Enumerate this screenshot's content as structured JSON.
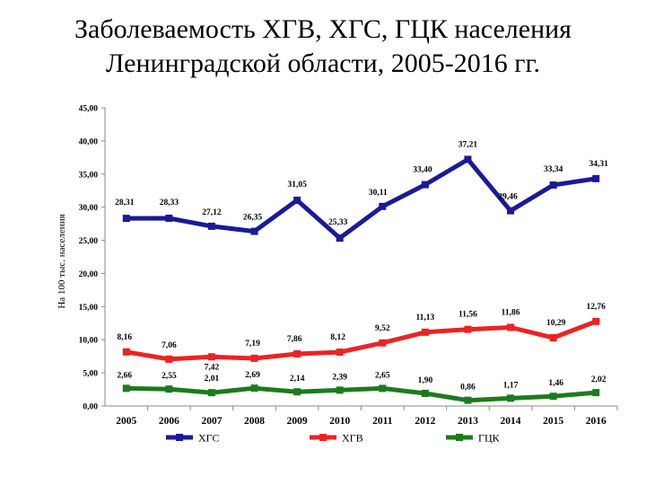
{
  "title_line1": "Заболеваемость ХГВ, ХГС, ГЦК населения",
  "title_line2": "Ленинградской области, 2005-2016 гг.",
  "chart_data": {
    "type": "line",
    "ylabel": "На 100 тыс. населения",
    "ylim": [
      0,
      45
    ],
    "yticks": [
      "0,00",
      "5,00",
      "10,00",
      "15,00",
      "20,00",
      "25,00",
      "30,00",
      "35,00",
      "40,00",
      "45,00"
    ],
    "categories": [
      "2005",
      "2006",
      "2007",
      "2008",
      "2009",
      "2010",
      "2011",
      "2012",
      "2013",
      "2014",
      "2015",
      "2016"
    ],
    "legend_position": "bottom",
    "series": [
      {
        "name": "ХГС",
        "color": "#1a1a9a",
        "values": [
          28.31,
          28.33,
          27.12,
          26.35,
          31.05,
          25.33,
          30.11,
          33.4,
          37.21,
          29.46,
          33.34,
          34.31
        ],
        "labels": [
          "28,31",
          "28,33",
          "27,12",
          "26,35",
          "31,05",
          "25,33",
          "30,11",
          "33,40",
          "37,21",
          "29,46",
          "33,34",
          "34,31"
        ]
      },
      {
        "name": "ХГВ",
        "color": "#ee2222",
        "values": [
          8.16,
          7.06,
          7.42,
          7.19,
          7.86,
          8.12,
          9.52,
          11.13,
          11.56,
          11.86,
          10.29,
          12.76
        ],
        "labels": [
          "8,16",
          "7,06",
          "7,42",
          "7,19",
          "7,86",
          "8,12",
          "9,52",
          "11,13",
          "11,56",
          "11,86",
          "10,29",
          "12,76"
        ]
      },
      {
        "name": "ГЦК",
        "color": "#1e7a1e",
        "values": [
          2.66,
          2.55,
          2.01,
          2.69,
          2.14,
          2.39,
          2.65,
          1.9,
          0.86,
          1.17,
          1.46,
          2.02
        ],
        "labels": [
          "2,66",
          "2,55",
          "2,01",
          "2,69",
          "2,14",
          "2,39",
          "2,65",
          "1,90",
          "0,86",
          "1,17",
          "1,46",
          "2,02"
        ]
      }
    ]
  }
}
